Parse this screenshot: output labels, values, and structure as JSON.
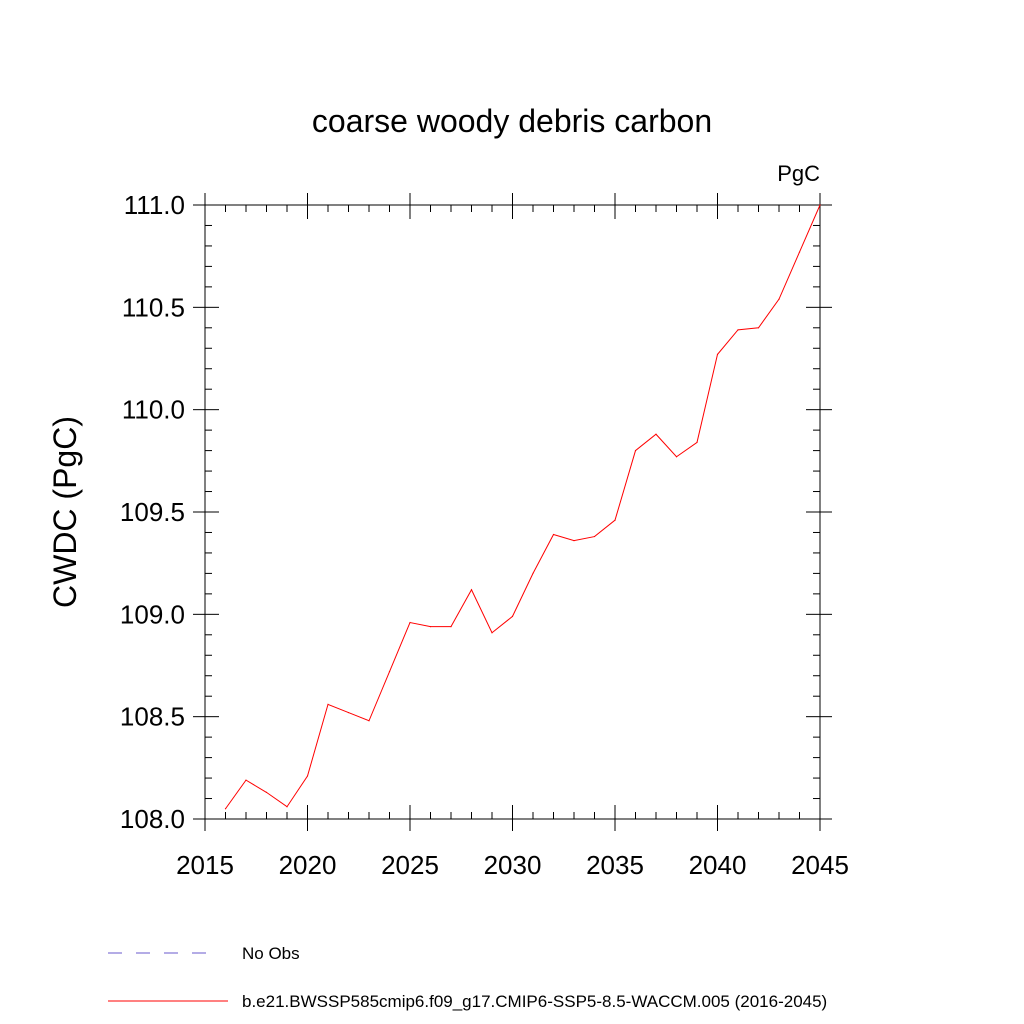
{
  "chart_data": {
    "type": "line",
    "title": "coarse woody debris carbon",
    "units_label": "PgC",
    "ylabel": "CWDC  (PgC)",
    "xlabel": "",
    "xlim": [
      2015,
      2045
    ],
    "ylim": [
      108.0,
      111.0
    ],
    "x_ticks": [
      2015,
      2020,
      2025,
      2030,
      2035,
      2040,
      2045
    ],
    "x_tick_labels": [
      "2015",
      "2020",
      "2025",
      "2030",
      "2035",
      "2040",
      "2045"
    ],
    "y_ticks": [
      108.0,
      108.5,
      109.0,
      109.5,
      110.0,
      110.5,
      111.0
    ],
    "y_tick_labels": [
      "108.0",
      "108.5",
      "109.0",
      "109.5",
      "110.0",
      "110.5",
      "111.0"
    ],
    "grid": false,
    "legend_position": "bottom",
    "series": [
      {
        "name": "b.e21.BWSSP585cmip6.f09_g17.CMIP6-SSP5-8.5-WACCM.005 (2016-2045)",
        "color": "#ff0000",
        "style": "solid",
        "x": [
          2016,
          2017,
          2018,
          2019,
          2020,
          2021,
          2022,
          2023,
          2024,
          2025,
          2026,
          2027,
          2028,
          2029,
          2030,
          2031,
          2032,
          2033,
          2034,
          2035,
          2036,
          2037,
          2038,
          2039,
          2040,
          2041,
          2042,
          2043,
          2044,
          2045
        ],
        "y": [
          108.05,
          108.19,
          108.13,
          108.06,
          108.21,
          108.56,
          108.52,
          108.48,
          108.72,
          108.96,
          108.94,
          108.94,
          109.12,
          108.91,
          108.99,
          109.2,
          109.39,
          109.36,
          109.38,
          109.46,
          109.8,
          109.88,
          109.77,
          109.84,
          110.27,
          110.39,
          110.4,
          110.54,
          110.77,
          111.0
        ]
      },
      {
        "name": "No Obs",
        "color": "#6a5acd",
        "style": "dashed",
        "x": [],
        "y": []
      }
    ]
  }
}
